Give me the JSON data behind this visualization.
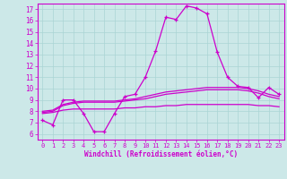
{
  "xlabel": "Windchill (Refroidissement éolien,°C)",
  "background_color": "#cce8e8",
  "grid_color": "#aad4d4",
  "line_color": "#cc00cc",
  "xlim": [
    -0.5,
    23.5
  ],
  "ylim": [
    5.5,
    17.5
  ],
  "yticks": [
    6,
    7,
    8,
    9,
    10,
    11,
    12,
    13,
    14,
    15,
    16,
    17
  ],
  "xticks": [
    0,
    1,
    2,
    3,
    4,
    5,
    6,
    7,
    8,
    9,
    10,
    11,
    12,
    13,
    14,
    15,
    16,
    17,
    18,
    19,
    20,
    21,
    22,
    23
  ],
  "curve1_x": [
    0,
    1,
    2,
    3,
    4,
    5,
    6,
    7,
    8,
    9,
    10,
    11,
    12,
    13,
    14,
    15,
    16,
    17,
    18,
    19,
    20,
    21,
    22,
    23
  ],
  "curve1_y": [
    7.2,
    6.8,
    9.0,
    9.0,
    7.8,
    6.2,
    6.2,
    7.8,
    9.3,
    9.5,
    11.0,
    13.3,
    16.3,
    16.1,
    17.3,
    17.1,
    16.6,
    13.2,
    11.0,
    10.2,
    10.1,
    9.2,
    10.1,
    9.5
  ],
  "smooth1_x": [
    0,
    1,
    2,
    3,
    4,
    5,
    6,
    7,
    8,
    9,
    10,
    11,
    12,
    13,
    14,
    15,
    16,
    17,
    18,
    19,
    20,
    21,
    22,
    23
  ],
  "smooth1_y": [
    8.0,
    8.1,
    8.6,
    8.8,
    8.9,
    8.9,
    8.9,
    8.9,
    9.0,
    9.1,
    9.3,
    9.5,
    9.7,
    9.8,
    9.9,
    10.0,
    10.1,
    10.1,
    10.1,
    10.1,
    10.0,
    9.8,
    9.5,
    9.3
  ],
  "smooth2_x": [
    0,
    1,
    2,
    3,
    4,
    5,
    6,
    7,
    8,
    9,
    10,
    11,
    12,
    13,
    14,
    15,
    16,
    17,
    18,
    19,
    20,
    21,
    22,
    23
  ],
  "smooth2_y": [
    7.9,
    8.0,
    8.5,
    8.7,
    8.8,
    8.8,
    8.8,
    8.8,
    8.9,
    9.0,
    9.1,
    9.3,
    9.5,
    9.6,
    9.7,
    9.8,
    9.9,
    9.9,
    9.9,
    9.9,
    9.8,
    9.6,
    9.3,
    9.1
  ],
  "smooth3_x": [
    0,
    1,
    2,
    3,
    4,
    5,
    6,
    7,
    8,
    9,
    10,
    11,
    12,
    13,
    14,
    15,
    16,
    17,
    18,
    19,
    20,
    21,
    22,
    23
  ],
  "smooth3_y": [
    7.8,
    7.9,
    8.1,
    8.2,
    8.2,
    8.2,
    8.2,
    8.2,
    8.3,
    8.3,
    8.4,
    8.4,
    8.5,
    8.5,
    8.6,
    8.6,
    8.6,
    8.6,
    8.6,
    8.6,
    8.6,
    8.5,
    8.5,
    8.4
  ]
}
